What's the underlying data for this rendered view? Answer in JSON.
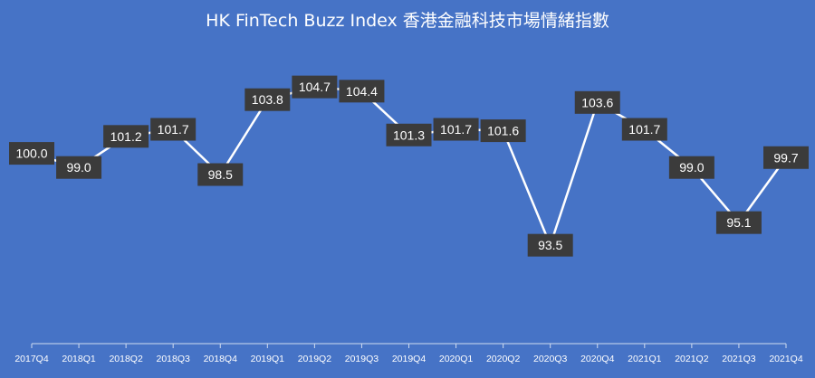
{
  "chart_data": {
    "type": "line",
    "title": "HK FinTech Buzz Index 香港金融科技市場情緒指數",
    "categories": [
      "2017Q4",
      "2018Q1",
      "2018Q2",
      "2018Q3",
      "2018Q4",
      "2019Q1",
      "2019Q2",
      "2019Q3",
      "2019Q4",
      "2020Q1",
      "2020Q2",
      "2020Q3",
      "2020Q4",
      "2021Q1",
      "2021Q2",
      "2021Q3",
      "2021Q4"
    ],
    "series": [
      {
        "values": [
          100.0,
          99.0,
          101.2,
          101.7,
          98.5,
          103.8,
          104.7,
          104.4,
          101.3,
          101.7,
          101.6,
          93.5,
          103.6,
          101.7,
          99.0,
          95.1,
          99.7
        ],
        "labels": [
          "100.0",
          "99.0",
          "101.2",
          "101.7",
          "98.5",
          "103.8",
          "104.7",
          "104.4",
          "101.3",
          "101.7",
          "101.6",
          "93.5",
          "103.6",
          "101.7",
          "99.0",
          "95.1",
          "99.7"
        ]
      }
    ],
    "ylim": [
      85,
      106.5
    ],
    "grid": false,
    "colors": {
      "background": "#4673c6",
      "line": "#ffffff",
      "label_box": "#3b3b3b",
      "label_text": "#ffffff",
      "highlight_text": "#f0883a",
      "axis": "#d0dcf0"
    },
    "highlight_index": 16
  }
}
